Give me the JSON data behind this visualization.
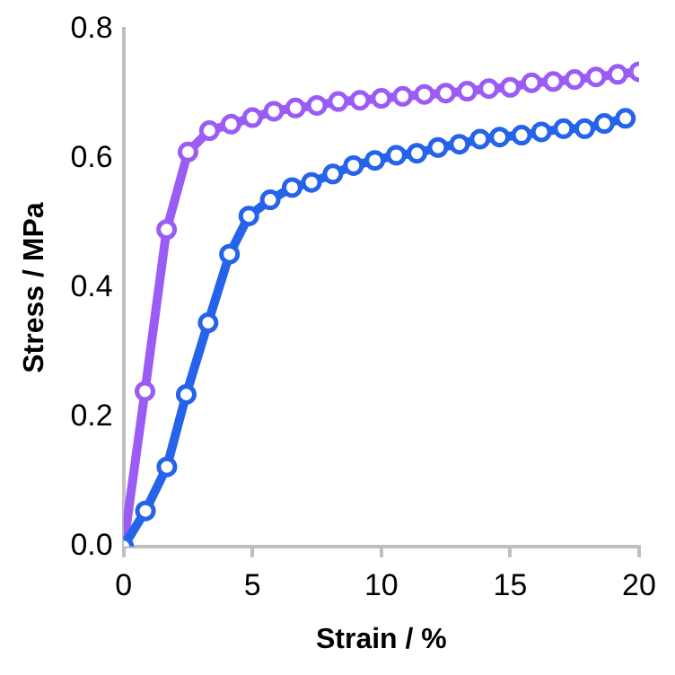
{
  "chart_data": {
    "type": "line",
    "xlabel": "Strain / %",
    "ylabel": "Stress / MPa",
    "xlim": [
      0,
      20
    ],
    "xticks": [
      0,
      5,
      10,
      15,
      20
    ],
    "ylim": [
      0,
      0.8
    ],
    "yticks": [
      {
        "value": 0,
        "label": "0.0"
      },
      {
        "value": 0.2,
        "label": "0.2"
      },
      {
        "value": 0.4,
        "label": "0.4"
      },
      {
        "value": 0.6,
        "label": "0.6"
      },
      {
        "value": 0.8,
        "label": "0.8"
      }
    ],
    "grid": false,
    "legend": false,
    "marker": "circle",
    "line_style": "solid",
    "series": [
      {
        "color": "#2563eb",
        "x": [
          0,
          0.85,
          1.68,
          2.43,
          3.28,
          4.11,
          4.86,
          5.69,
          6.54,
          7.29,
          8.12,
          8.92,
          9.75,
          10.58,
          11.38,
          12.2,
          13.03,
          13.83,
          14.59,
          15.44,
          16.21,
          17.07,
          17.89,
          18.65,
          19.47
        ],
        "values": [
          0,
          0.055,
          0.123,
          0.235,
          0.346,
          0.452,
          0.511,
          0.536,
          0.555,
          0.563,
          0.576,
          0.589,
          0.597,
          0.605,
          0.608,
          0.617,
          0.622,
          0.63,
          0.633,
          0.636,
          0.641,
          0.646,
          0.646,
          0.654,
          0.662
        ]
      },
      {
        "color": "#9b5cf6",
        "x": [
          0,
          0.83,
          1.67,
          2.5,
          3.33,
          4.17,
          5,
          5.83,
          6.67,
          7.5,
          8.33,
          9.17,
          10,
          10.83,
          11.67,
          12.5,
          13.33,
          14.17,
          15,
          15.83,
          16.67,
          17.5,
          18.33,
          19.17,
          20
        ],
        "values": [
          0,
          0.24,
          0.49,
          0.61,
          0.643,
          0.653,
          0.663,
          0.673,
          0.678,
          0.682,
          0.688,
          0.69,
          0.693,
          0.696,
          0.699,
          0.701,
          0.704,
          0.708,
          0.71,
          0.717,
          0.719,
          0.722,
          0.726,
          0.73,
          0.734
        ]
      }
    ]
  }
}
